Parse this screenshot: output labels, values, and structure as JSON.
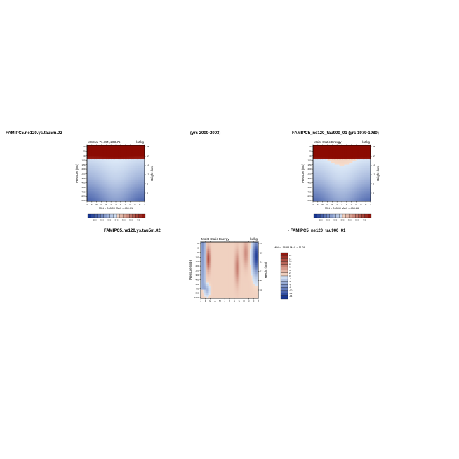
{
  "headers": {
    "left": "FAMIPC5.ne120.ys.tau5m.02",
    "middle": "(yrs 2000-2003)",
    "right": "FAMIPC5_ne120_tau900_01 (yrs 1979-1980)",
    "diff_left": "FAMIPC5.ne120.ys.tau5m.02",
    "diff_right": "- FAMIPC5_ne120_tau900_01"
  },
  "colors": {
    "cool_dark": "#0b2a8c",
    "cool_light": "#dbe8f7",
    "warm_light": "#f6dccb",
    "warm_dark": "#8b0a02"
  },
  "chart_data": [
    {
      "type": "heatmap",
      "title": "MSE at 71.15N,203.75",
      "units": "kJ/kg",
      "x": [
        "J",
        "F",
        "M",
        "A",
        "M",
        "J",
        "J",
        "A",
        "S",
        "O",
        "N",
        "D",
        "J"
      ],
      "ylabel": "Pressure (mb)",
      "ylabel_right": "Height (km)",
      "yticks": [
        "30",
        "50",
        "70",
        "100",
        "150",
        "200",
        "250",
        "300",
        "400",
        "500",
        "700",
        "850",
        "1000"
      ],
      "yticks_right": [
        "24",
        "20",
        "16",
        "12",
        "8",
        "4"
      ],
      "stats": "MIN = 248.09  MAX = 450.01",
      "colorbar": [
        "280",
        "300",
        "320",
        "340",
        "360",
        "380",
        "400"
      ],
      "range": [
        248.09,
        450.01
      ]
    },
    {
      "type": "heatmap",
      "title": "Moist Static Energy",
      "units": "kJ/kg",
      "x": [
        "J",
        "F",
        "M",
        "A",
        "M",
        "J",
        "J",
        "A",
        "S",
        "O",
        "N",
        "D",
        "J"
      ],
      "ylabel": "Pressure (mb)",
      "ylabel_right": "Height (km)",
      "yticks": [
        "30",
        "50",
        "70",
        "100",
        "150",
        "200",
        "250",
        "300",
        "400",
        "500",
        "700",
        "850",
        "1000"
      ],
      "yticks_right": [
        "24",
        "20",
        "16",
        "12",
        "8",
        "4"
      ],
      "stats": "MIN = 248.40  MAX = 458.86",
      "colorbar": [
        "280",
        "300",
        "320",
        "340",
        "360",
        "380",
        "400"
      ],
      "range": [
        248.4,
        458.86
      ]
    },
    {
      "type": "heatmap",
      "title": "Moist Static Energy",
      "units": "kJ/kg",
      "x": [
        "J",
        "F",
        "M",
        "A",
        "M",
        "J",
        "J",
        "A",
        "S",
        "O",
        "N",
        "D",
        "J"
      ],
      "ylabel": "Pressure (mb)",
      "ylabel_right": "Height (km)",
      "yticks": [
        "30",
        "50",
        "70",
        "100",
        "150",
        "200",
        "250",
        "300",
        "400",
        "500",
        "700",
        "850",
        "1000"
      ],
      "yticks_right": [
        "24",
        "20",
        "16",
        "12",
        "8",
        "4"
      ],
      "stats": "MIN = -16.88  MAX = 11.09",
      "colorbar": [
        "14",
        "12",
        "10",
        "8",
        "6",
        "4",
        "2",
        "0",
        "-2",
        "-4",
        "-6",
        "-8",
        "-10",
        "-12",
        "-14"
      ],
      "range": [
        -16.88,
        11.09
      ]
    }
  ]
}
